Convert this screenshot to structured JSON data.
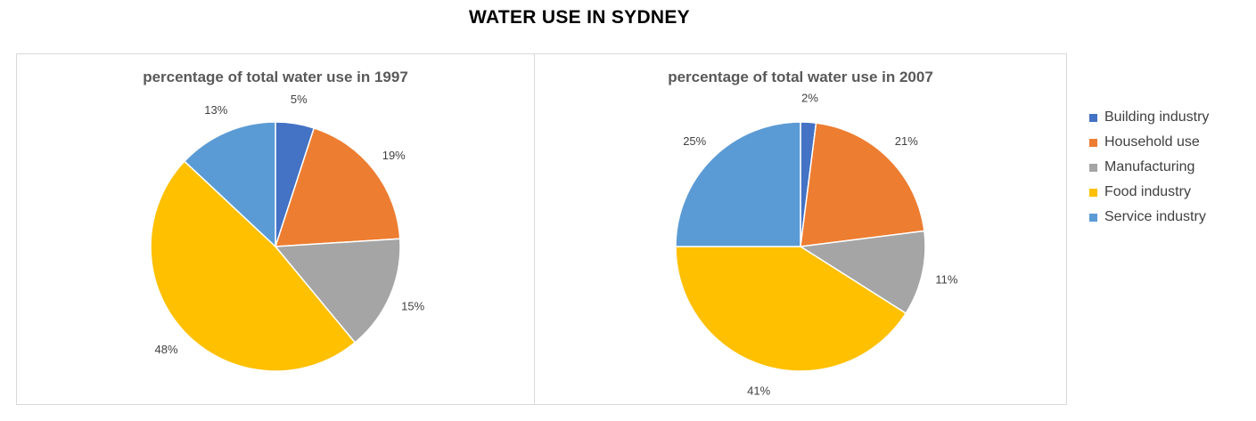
{
  "title": "WATER USE IN SYDNEY",
  "legend": [
    {
      "label": "Building industry",
      "color": "#4472C4"
    },
    {
      "label": "Household use",
      "color": "#ED7D31"
    },
    {
      "label": "Manufacturing",
      "color": "#A5A5A5"
    },
    {
      "label": "Food industry",
      "color": "#FFC000"
    },
    {
      "label": "Service industry",
      "color": "#5B9BD5"
    }
  ],
  "chart_data": [
    {
      "type": "pie",
      "title": "percentage of total water use in 1997",
      "categories": [
        "Building industry",
        "Household use",
        "Manufacturing",
        "Food industry",
        "Service industry"
      ],
      "values": [
        5,
        19,
        15,
        48,
        13
      ],
      "labels": [
        "5%",
        "19%",
        "15%",
        "48%",
        "13%"
      ]
    },
    {
      "type": "pie",
      "title": "percentage of total water use in 2007",
      "categories": [
        "Building industry",
        "Household use",
        "Manufacturing",
        "Food industry",
        "Service industry"
      ],
      "values": [
        2,
        21,
        11,
        41,
        25
      ],
      "labels": [
        "2%",
        "21%",
        "11%",
        "41%",
        "25%"
      ]
    }
  ]
}
